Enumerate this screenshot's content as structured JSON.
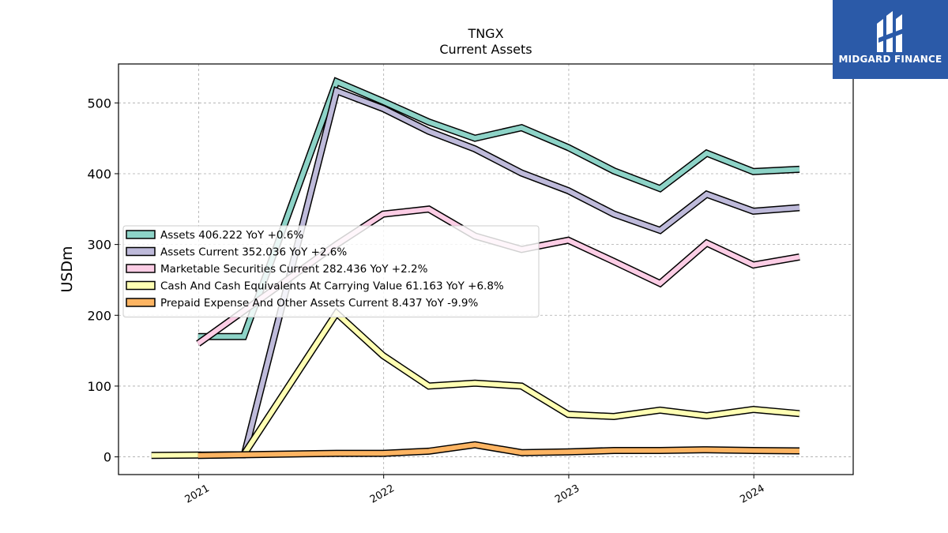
{
  "brand": {
    "name": "MIDGARD FINANCE",
    "color": "#2b5aa8"
  },
  "chart_data": {
    "type": "line",
    "title": "TNGX",
    "subtitle": "Current  Assets",
    "ylabel": "USDm",
    "xlabel": "",
    "ylim": [
      -25,
      555
    ],
    "xlim": [
      "2020-07-27",
      "2024-07-15"
    ],
    "yticks": [
      0,
      100,
      200,
      300,
      400,
      500
    ],
    "xticks": [
      {
        "label": "2021",
        "date": "2021-01-01"
      },
      {
        "label": "2022",
        "date": "2022-01-01"
      },
      {
        "label": "2023",
        "date": "2023-01-01"
      },
      {
        "label": "2024",
        "date": "2024-01-01"
      }
    ],
    "grid": true,
    "legend_position": "center-left",
    "series": [
      {
        "name": "Assets",
        "legend": "Assets  406.222 YoY +0.6%",
        "color": "#8dd3c7",
        "points": [
          [
            "2020-12-31",
            170
          ],
          [
            "2021-03-31",
            170
          ],
          [
            "2021-09-30",
            530
          ],
          [
            "2021-12-31",
            502
          ],
          [
            "2022-03-31",
            473
          ],
          [
            "2022-06-30",
            450
          ],
          [
            "2022-09-30",
            465
          ],
          [
            "2022-12-31",
            437
          ],
          [
            "2023-03-31",
            404
          ],
          [
            "2023-06-30",
            379
          ],
          [
            "2023-09-30",
            429
          ],
          [
            "2023-12-31",
            403
          ],
          [
            "2024-03-31",
            406.222
          ]
        ]
      },
      {
        "name": "Assets Current",
        "legend": "Assets Current  352.036 YoY +2.6%",
        "color": "#bebada",
        "points": [
          [
            "2021-03-31",
            0
          ],
          [
            "2021-09-30",
            517
          ],
          [
            "2021-12-31",
            492
          ],
          [
            "2022-03-31",
            460
          ],
          [
            "2022-06-30",
            435
          ],
          [
            "2022-09-30",
            401
          ],
          [
            "2022-12-31",
            376
          ],
          [
            "2023-03-31",
            343
          ],
          [
            "2023-06-30",
            320
          ],
          [
            "2023-09-30",
            371
          ],
          [
            "2023-12-31",
            347
          ],
          [
            "2024-03-31",
            352.036
          ]
        ]
      },
      {
        "name": "Marketable Securities Current",
        "legend": "Marketable Securities Current  282.436 YoY +2.2%",
        "color": "#fccde5",
        "points": [
          [
            "2020-12-31",
            160
          ],
          [
            "2021-09-30",
            300
          ],
          [
            "2021-12-31",
            343
          ],
          [
            "2022-03-31",
            350
          ],
          [
            "2022-06-30",
            312
          ],
          [
            "2022-09-30",
            293
          ],
          [
            "2022-12-31",
            306
          ],
          [
            "2023-03-31",
            276
          ],
          [
            "2023-06-30",
            245
          ],
          [
            "2023-09-30",
            302
          ],
          [
            "2023-12-31",
            271
          ],
          [
            "2024-03-31",
            282.436
          ]
        ]
      },
      {
        "name": "Cash And Cash Equivalents At Carrying Value",
        "legend": "Cash And Cash Equivalents At Carrying Value  61.163 YoY +6.8%",
        "color": "#ffffb3",
        "points": [
          [
            "2020-09-30",
            2
          ],
          [
            "2021-03-31",
            3
          ],
          [
            "2021-09-30",
            203
          ],
          [
            "2021-12-31",
            143
          ],
          [
            "2022-03-31",
            100
          ],
          [
            "2022-06-30",
            104
          ],
          [
            "2022-09-30",
            100
          ],
          [
            "2022-12-31",
            60
          ],
          [
            "2023-03-31",
            57
          ],
          [
            "2023-06-30",
            66
          ],
          [
            "2023-09-30",
            58
          ],
          [
            "2023-12-31",
            67
          ],
          [
            "2024-03-31",
            61.163
          ]
        ]
      },
      {
        "name": "Prepaid Expense And Other Assets Current",
        "legend": "Prepaid Expense And Other Assets Current  8.437 YoY -9.9%",
        "color": "#fdb462",
        "points": [
          [
            "2020-12-31",
            2
          ],
          [
            "2021-09-30",
            5
          ],
          [
            "2021-12-31",
            5
          ],
          [
            "2022-03-31",
            8
          ],
          [
            "2022-06-30",
            17
          ],
          [
            "2022-09-30",
            6
          ],
          [
            "2022-12-31",
            7
          ],
          [
            "2023-03-31",
            9
          ],
          [
            "2023-06-30",
            9
          ],
          [
            "2023-09-30",
            10
          ],
          [
            "2023-12-31",
            9
          ],
          [
            "2024-03-31",
            8.437
          ]
        ]
      }
    ]
  }
}
